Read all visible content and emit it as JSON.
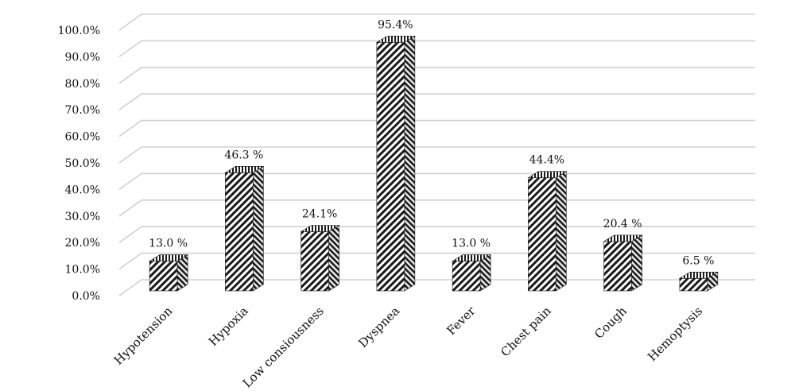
{
  "chart_data": {
    "type": "bar",
    "title": "",
    "xlabel": "",
    "ylabel": "",
    "categories": [
      "Hypotension",
      "Hypoxia",
      "Low consiousness",
      "Dyspnea",
      "Fever",
      "Chest pain",
      "Cough",
      "Hemoptysis"
    ],
    "values": [
      13.0,
      46.3,
      24.1,
      95.4,
      13.0,
      44.4,
      20.4,
      6.5
    ],
    "data_labels": [
      "13.0 %",
      "46.3 %",
      "24.1%",
      "95.4%",
      "13.0 %",
      "44.4%",
      "20.4 %",
      "6.5 %"
    ],
    "ylim": [
      0,
      100
    ],
    "yticks": [
      "0.0%",
      "10.0%",
      "20.0%",
      "30.0%",
      "40.0%",
      "50.0%",
      "60.0%",
      "70.0%",
      "80.0%",
      "90.0%",
      "100.0%"
    ],
    "grid": true,
    "legend": "none",
    "bar_style": "3d-diagonal-hatched",
    "colors": {
      "bar_dark": "#1a1a1a",
      "bar_light": "#ffffff",
      "grid": "#d0d0d0"
    }
  }
}
